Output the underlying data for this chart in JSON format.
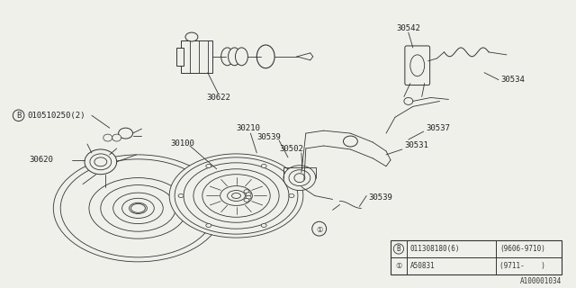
{
  "bg_color": "#f0f0eb",
  "line_color": "#333333",
  "label_color": "#222222",
  "diagram_id": "A100001034",
  "table_data": [
    [
      "B",
      "011308180(6)",
      "(9606-9710)"
    ],
    [
      "1",
      "A50831",
      "(9711-    )"
    ]
  ]
}
